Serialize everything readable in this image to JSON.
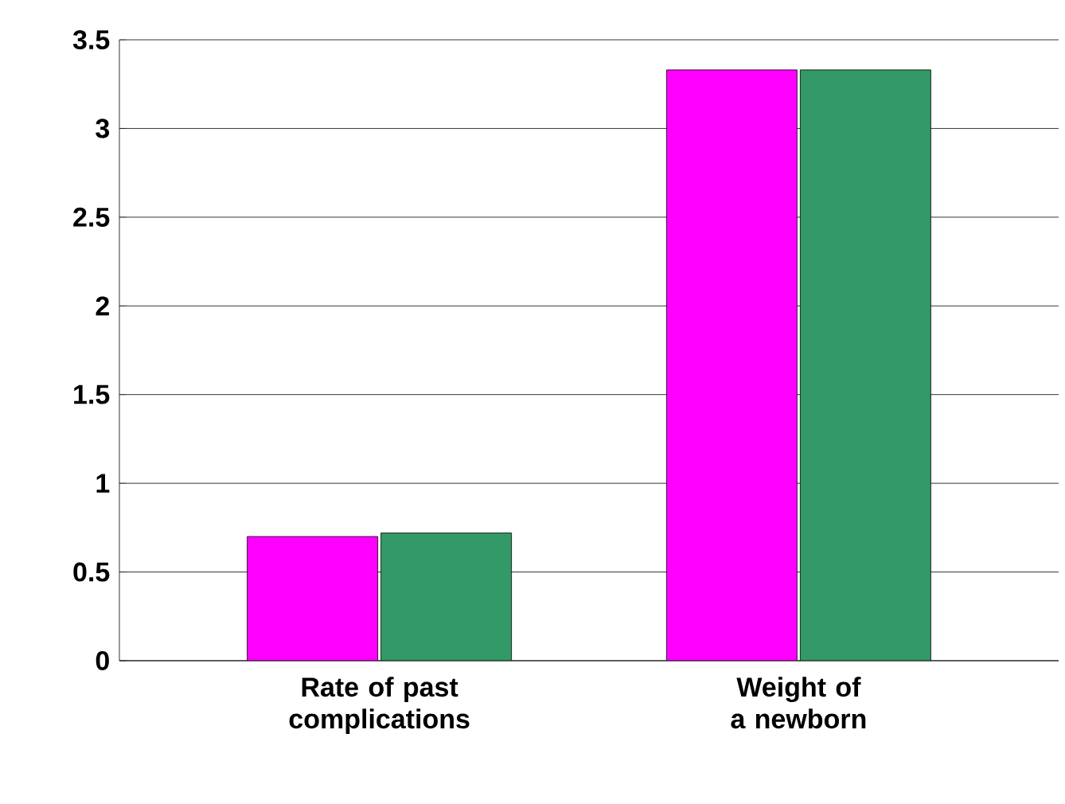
{
  "chart_data": {
    "type": "bar",
    "categories": [
      "Rate of past complications",
      "Weight of a newborn"
    ],
    "series": [
      {
        "color": "#ff00ff",
        "values": [
          0.7,
          3.33
        ]
      },
      {
        "color": "#339966",
        "values": [
          0.72,
          3.33
        ]
      }
    ],
    "ylim": [
      0,
      3.5
    ],
    "yticks": [
      0,
      0.5,
      1,
      1.5,
      2,
      2.5,
      3,
      3.5
    ],
    "grid": "y"
  }
}
